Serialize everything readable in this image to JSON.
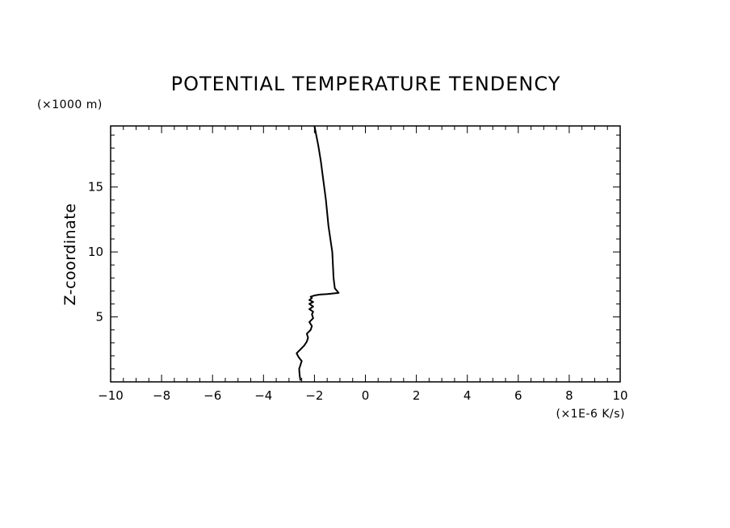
{
  "chart_data": {
    "type": "line",
    "title": "POTENTIAL TEMPERATURE TENDENCY",
    "ylabel": "Z-coordinate",
    "y_unit": "(×1000 m)",
    "x_unit": "(×1E-6 K/s)",
    "xlim": [
      -10,
      10
    ],
    "ylim": [
      0,
      19.7
    ],
    "x_ticks": [
      -10,
      -8,
      -6,
      -4,
      -2,
      0,
      2,
      4,
      6,
      8,
      10
    ],
    "x_tick_labels": [
      "−10",
      "−8",
      "−6",
      "−4",
      "−2",
      "0",
      "2",
      "4",
      "6",
      "8",
      "10"
    ],
    "y_ticks": [
      5,
      10,
      15
    ],
    "y_tick_labels": [
      "5",
      "10",
      "15"
    ],
    "grid": false,
    "series": [
      {
        "x": [
          -2.55,
          -2.58,
          -2.6,
          -2.55,
          -2.5,
          -2.62,
          -2.7,
          -2.55,
          -2.4,
          -2.3,
          -2.25,
          -2.3,
          -2.15,
          -2.1,
          -2.2,
          -2.05,
          -2.1,
          -2.05,
          -2.2,
          -2.05,
          -2.2,
          -2.05,
          -2.2,
          -2.1,
          -2.15,
          -2.0,
          -1.8,
          -1.5,
          -1.3,
          -1.05,
          -1.2,
          -1.25,
          -1.3,
          -1.45,
          -1.55,
          -1.65,
          -1.75,
          -1.85,
          -1.95,
          -2.0
        ],
        "y": [
          0.1,
          0.5,
          1.0,
          1.3,
          1.6,
          1.9,
          2.2,
          2.5,
          2.8,
          3.1,
          3.4,
          3.7,
          4.0,
          4.3,
          4.6,
          4.9,
          5.2,
          5.4,
          5.6,
          5.8,
          6.0,
          6.15,
          6.3,
          6.45,
          6.55,
          6.65,
          6.72,
          6.76,
          6.8,
          6.85,
          7.2,
          8.0,
          10.0,
          12.0,
          14.0,
          15.5,
          17.0,
          18.2,
          19.2,
          19.7
        ]
      }
    ]
  }
}
